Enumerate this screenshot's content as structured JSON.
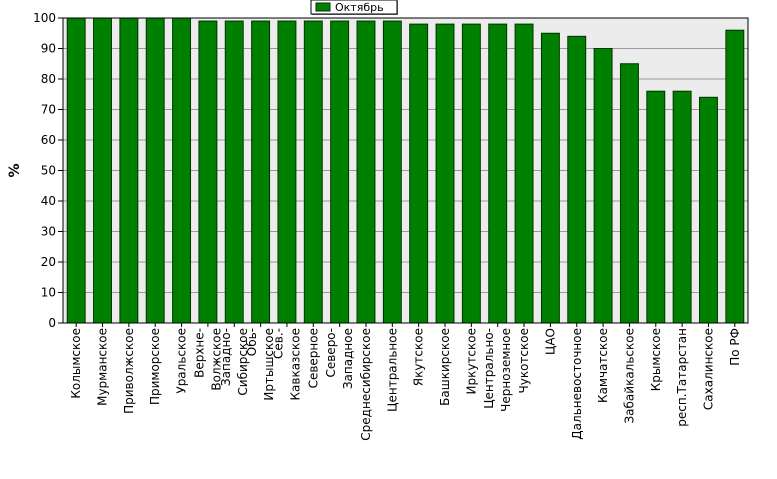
{
  "chart_data": {
    "type": "bar",
    "ylabel": "%",
    "xlabel": "",
    "ylim": [
      0,
      100
    ],
    "yticks": [
      0,
      10,
      20,
      30,
      40,
      50,
      60,
      70,
      80,
      90,
      100
    ],
    "grid": true,
    "legend_position": "top-center",
    "colors": {
      "bar": "#008000",
      "bar_stroke": "#003300",
      "plot_background": "#ececec",
      "gridline": "#9a9a9a"
    },
    "categories": [
      "Колымское",
      "Мурманское",
      "Приволжское",
      "Приморское",
      "Уральское",
      [
        "Верхне-",
        "Волжское"
      ],
      [
        "Западно-",
        "Сибирское"
      ],
      [
        "Обь-",
        "Иртышское"
      ],
      [
        "Сев.-",
        "Кавказское"
      ],
      "Северное",
      [
        "Северо-",
        "Западное"
      ],
      "Среднесибирское",
      "Центральное",
      "Якутское",
      "Башкирское",
      "Иркутское",
      [
        "Центрально-",
        "Черноземное"
      ],
      "Чукотское",
      "ЦАО",
      "Дальневосточное",
      "Камчатское",
      "Забайкальское",
      "Крымское",
      "респ.Татарстан",
      "Сахалинское",
      "По РФ"
    ],
    "series": [
      {
        "name": "Октябрь",
        "values": [
          100,
          100,
          100,
          100,
          100,
          99,
          99,
          99,
          99,
          99,
          99,
          99,
          99,
          98,
          98,
          98,
          98,
          98,
          95,
          94,
          90,
          85,
          76,
          76,
          74,
          96
        ]
      }
    ]
  }
}
